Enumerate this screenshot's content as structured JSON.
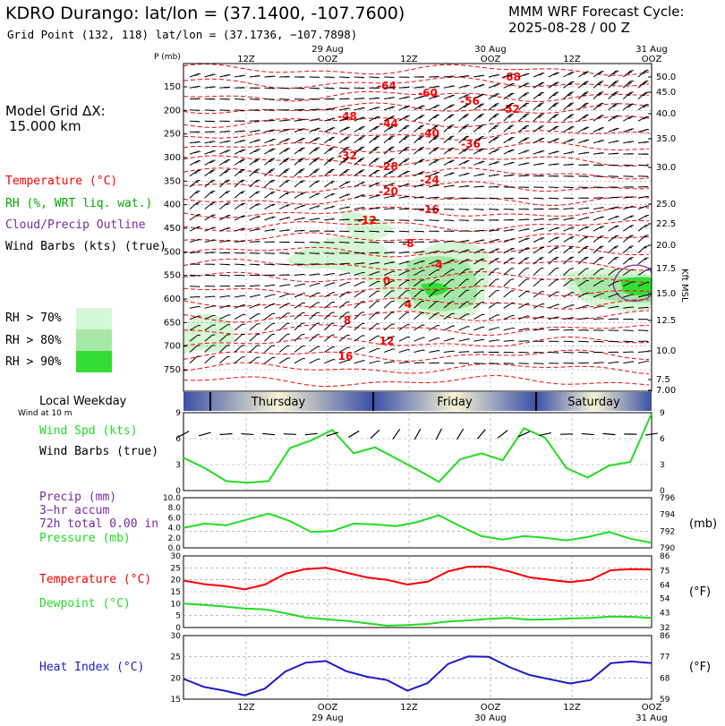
{
  "header": {
    "title": "KDRO Durango:  lat/lon = (37.1400, -107.7600)",
    "subtitle": "Grid Point (132, 118) lat/lon = (37.1736, −107.7898)",
    "cycle_line1": "MMM WRF Forecast Cycle:",
    "cycle_line2": "2025-08-28 / 00  Z"
  },
  "left_panel": {
    "model_grid_label": "Model Grid ΔX:",
    "model_grid_value": "15.000 km",
    "legend_temp": "Temperature (°C)",
    "legend_rh": "RH (%, WRT liq. wat.)",
    "legend_cloud": "Cloud/Precip Outline",
    "legend_wind": "Wind Barbs (kts) (true)",
    "rh_70": "RH > 70%",
    "rh_80": "RH > 80%",
    "rh_90": "RH > 90%",
    "weekday_label": "Local Weekday",
    "wind_at_10m": "Wind at 10 m",
    "wind_spd_label": "Wind Spd (kts)",
    "wind_barbs_label": "Wind Barbs (true)",
    "precip_label": "Precip (mm)",
    "precip_accum": "3−hr accum",
    "precip_total": "72h total 0.00 in",
    "pressure_label": "Pressure (mb)",
    "temp_label": "Temperature (°C)",
    "dewpoint_label": "Dewpoint (°C)",
    "heat_index_label": "Heat Index (°C)"
  },
  "right_units": {
    "kft": "Kft MSL",
    "mb": "(mb)",
    "degf_temp": "(°F)",
    "degf_heat": "(°F)"
  },
  "colors": {
    "temp": "#ff0000",
    "rh": "#00aa00",
    "cloud": "#7a2aa0",
    "wind": "#000000",
    "windspd": "#22dd22",
    "dewpoint": "#22dd22",
    "heat": "#1a1acc",
    "precip": "#7a2aa0",
    "pressure": "#22dd22",
    "rh70": "#d4f7d4",
    "rh80": "#a6e8a6",
    "rh90": "#33dd33"
  },
  "chart_data": [
    {
      "type": "line",
      "name": "sounding",
      "p_label": "P (mb)",
      "top_time_labels": [
        "12Z",
        "OOZ",
        "12Z",
        "OOZ",
        "12Z",
        "OOZ"
      ],
      "top_date_labels": [
        "29 Aug",
        "30 Aug",
        "31 Aug"
      ],
      "pressure_levels": [
        150,
        200,
        250,
        300,
        350,
        400,
        450,
        500,
        550,
        600,
        650,
        700,
        750
      ],
      "kft_labels": [
        "50.0",
        "45.0",
        "40.0",
        "35.0",
        "30.0",
        "25.0",
        "22.5",
        "20.0",
        "17.5",
        "15.0",
        "12.5",
        "10.0",
        "7.5",
        "7.00"
      ],
      "temperature_labels": [
        "-64",
        "-60",
        "-56",
        "-52",
        "-68",
        "-48",
        "-44",
        "-40",
        "-36",
        "-32",
        "-28",
        "-24",
        "-20",
        "-16",
        "-12",
        "-8",
        "-4",
        "0",
        "4",
        "8",
        "12",
        "16"
      ]
    },
    {
      "type": "table",
      "name": "weekday_bar",
      "days": [
        "Thursday",
        "Friday",
        "Saturday"
      ]
    },
    {
      "type": "line",
      "name": "wind_speed",
      "ylim": [
        0,
        9
      ],
      "y_ticks": [
        0,
        3,
        6,
        9
      ],
      "values": [
        3.8,
        2.6,
        1.1,
        0.9,
        1.1,
        4.9,
        5.8,
        7.0,
        4.3,
        5.0,
        3.7,
        2.4,
        1.0,
        3.6,
        4.3,
        3.5,
        7.2,
        6.1,
        2.6,
        1.5,
        2.9,
        3.3,
        8.9
      ]
    },
    {
      "type": "line",
      "name": "precip_pressure",
      "precip_ylim": [
        0,
        10
      ],
      "precip_ticks": [
        "0.0",
        "2.0",
        "4.0",
        "6.0",
        "8.0",
        "10.0"
      ],
      "pressure_ylim": [
        790,
        796
      ],
      "pressure_ticks": [
        790,
        792,
        794,
        796
      ],
      "pressure": [
        792.4,
        792.9,
        792.7,
        793.4,
        794.1,
        793.2,
        791.9,
        792.0,
        792.9,
        792.8,
        792.6,
        793.1,
        793.9,
        792.6,
        791.4,
        791.0,
        791.4,
        791.2,
        790.9,
        791.3,
        791.9,
        791.1,
        790.6
      ]
    },
    {
      "type": "line",
      "name": "temp_dewpoint",
      "ylim": [
        0,
        30
      ],
      "c_ticks": [
        0,
        5,
        10,
        15,
        20,
        25,
        30
      ],
      "f_ticks": [
        32,
        43,
        54,
        64,
        75,
        86
      ],
      "temperature": [
        19.7,
        18.2,
        17.4,
        16.0,
        18.0,
        22.5,
        24.5,
        25.0,
        23.0,
        21.0,
        20.0,
        18.0,
        19.2,
        23.5,
        25.5,
        25.5,
        23.5,
        21.0,
        20.0,
        19.0,
        20.0,
        24.0,
        24.5,
        24.3
      ],
      "dewpoint": [
        10.0,
        9.5,
        8.8,
        8.0,
        7.6,
        6.0,
        4.2,
        3.5,
        2.8,
        1.8,
        0.8,
        1.0,
        1.5,
        2.5,
        3.0,
        3.6,
        4.0,
        3.3,
        3.4,
        3.8,
        4.0,
        4.6,
        4.5,
        4.0
      ]
    },
    {
      "type": "line",
      "name": "heat_index",
      "ylim": [
        15,
        30
      ],
      "c_ticks": [
        15,
        20,
        25,
        30
      ],
      "f_ticks": [
        59,
        68,
        77,
        86
      ],
      "values": [
        19.8,
        17.9,
        17.0,
        15.9,
        17.5,
        21.5,
        23.6,
        24.0,
        21.6,
        20.3,
        19.5,
        17.0,
        18.8,
        23.3,
        25.1,
        25.0,
        22.6,
        20.7,
        19.7,
        18.7,
        19.5,
        23.5,
        23.9,
        23.5
      ],
      "bottom_time_labels": [
        "12Z",
        "OOZ",
        "12Z",
        "OOZ",
        "12Z",
        "OOZ"
      ],
      "bottom_date_labels": [
        "29 Aug",
        "30 Aug",
        "31 Aug"
      ]
    }
  ]
}
